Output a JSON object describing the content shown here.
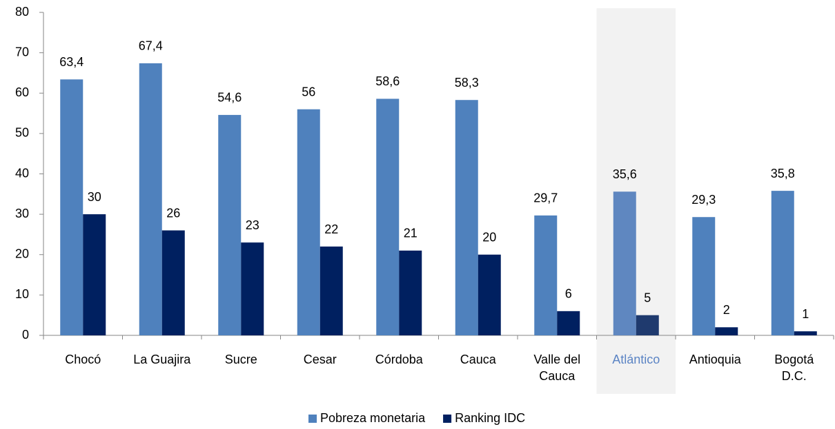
{
  "chart_data": {
    "type": "bar",
    "categories": [
      "Chocó",
      "La Guajira",
      "Sucre",
      "Cesar",
      "Córdoba",
      "Cauca",
      "Valle del\nCauca",
      "Atlántico",
      "Antioquia",
      "Bogotá\nD.C."
    ],
    "series": [
      {
        "name": "Pobreza monetaria",
        "color": "#4f81bd",
        "values": [
          63.4,
          67.4,
          54.6,
          56,
          58.6,
          58.3,
          29.7,
          35.6,
          29.3,
          35.8
        ],
        "value_labels": [
          "63,4",
          "67,4",
          "54,6",
          "56",
          "58,6",
          "58,3",
          "29,7",
          "35,6",
          "29,3",
          "35,8"
        ]
      },
      {
        "name": "Ranking IDC",
        "color": "#002060",
        "values": [
          30,
          26,
          23,
          22,
          21,
          20,
          6,
          5,
          2,
          1
        ]
      }
    ],
    "ylim": [
      0,
      80
    ],
    "yticks": [
      0,
      10,
      20,
      30,
      40,
      50,
      60,
      70,
      80
    ],
    "highlight": 7,
    "legend": "bottom"
  }
}
